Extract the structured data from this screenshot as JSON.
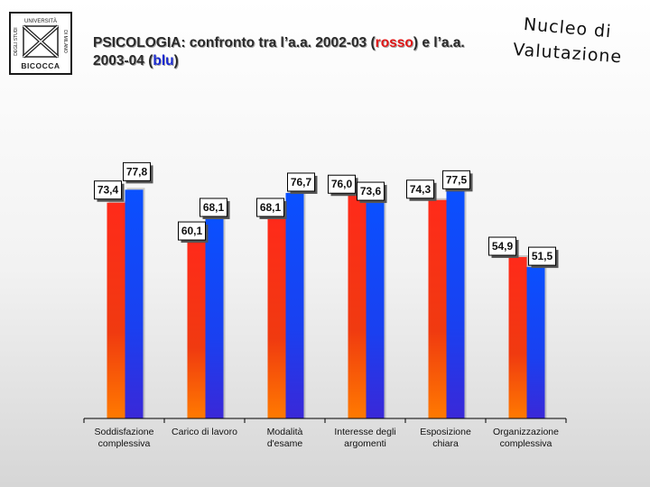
{
  "logo": {
    "line1": "UNIVERSITÀ",
    "line2": "DEGLI STUDI",
    "line3": "DI MILANO",
    "name": "BICOCCA",
    "icon": "bicocca-logo-icon"
  },
  "title": {
    "part1": "PSICOLOGIA: confronto tra l’a.a. 2002-03 (",
    "red_word": "rosso",
    "part2": ") e l’a.a. 2003-04 (",
    "blue_word": "blu",
    "part3": ")"
  },
  "brand": {
    "line1": "Nucleo di",
    "line2": "Valutazione"
  },
  "colors": {
    "series_2002": "#e02010",
    "series_2003": "#1838e8",
    "title_red": "#e01818",
    "title_blue": "#1a2ad0"
  },
  "chart_data": {
    "type": "bar",
    "title": "PSICOLOGIA: confronto tra l’a.a. 2002-03 (rosso) e l’a.a. 2003-04 (blu)",
    "categories": [
      [
        "Soddisfazione",
        "complessiva"
      ],
      [
        "Carico di lavoro"
      ],
      [
        "Modalità",
        "d'esame"
      ],
      [
        "Interesse degli",
        "argomenti"
      ],
      [
        "Esposizione",
        "chiara"
      ],
      [
        "Organizzazione",
        "complessiva"
      ]
    ],
    "series": [
      {
        "name": "a.a. 2002-03",
        "color": "#e02010",
        "values": [
          73.4,
          60.1,
          68.1,
          76.0,
          74.3,
          54.9
        ]
      },
      {
        "name": "a.a. 2003-04",
        "color": "#1838e8",
        "values": [
          77.8,
          68.1,
          76.7,
          73.6,
          77.5,
          51.5
        ]
      }
    ],
    "labels": [
      [
        "73,4",
        "60,1",
        "68,1",
        "76,0",
        "74,3",
        "54,9"
      ],
      [
        "77,8",
        "68,1",
        "76,7",
        "73,6",
        "77,5",
        "51,5"
      ]
    ],
    "ylim": [
      0,
      100
    ],
    "xlabel": "",
    "ylabel": "",
    "grid": false,
    "legend": "none"
  }
}
